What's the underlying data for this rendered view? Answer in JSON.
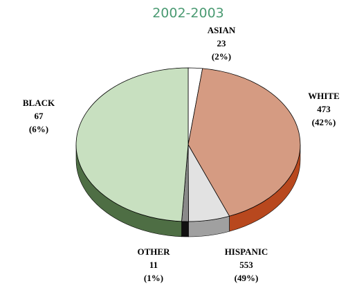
{
  "chart_data": {
    "type": "pie",
    "title": "2002-2003",
    "categories": [
      "ASIAN",
      "WHITE",
      "BLACK",
      "OTHER",
      "HISPANIC"
    ],
    "values": [
      23,
      473,
      67,
      11,
      553
    ],
    "percent_labels": [
      "(2%)",
      "(42%)",
      "(6%)",
      "(1%)",
      "(49%)"
    ],
    "colors": [
      "#ffffff",
      "#d59b82",
      "#e2e2e2",
      "#8a8a8a",
      "#c8e0c0"
    ],
    "side_colors": [
      "#cccccc",
      "#b8481e",
      "#a0a0a0",
      "#111111",
      "#4e6e44"
    ]
  }
}
